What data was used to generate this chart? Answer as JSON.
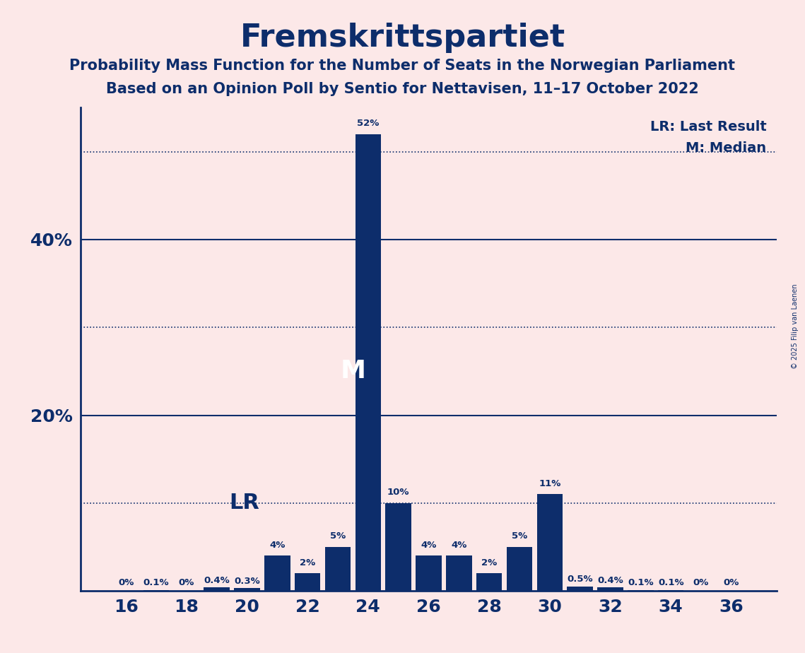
{
  "title": "Fremskrittspartiet",
  "subtitle1": "Probability Mass Function for the Number of Seats in the Norwegian Parliament",
  "subtitle2": "Based on an Opinion Poll by Sentio for Nettavisen, 11–17 October 2022",
  "copyright": "© 2025 Filip van Laenen",
  "background_color": "#fce8e8",
  "bar_color": "#0d2d6b",
  "text_color": "#0d2d6b",
  "seats": [
    16,
    17,
    18,
    19,
    20,
    21,
    22,
    23,
    24,
    25,
    26,
    27,
    28,
    29,
    30,
    31,
    32,
    33,
    34,
    35,
    36
  ],
  "probabilities": [
    0.0,
    0.1,
    0.0,
    0.4,
    0.3,
    4.0,
    2.0,
    5.0,
    52.0,
    10.0,
    4.0,
    4.0,
    2.0,
    5.0,
    11.0,
    0.5,
    0.4,
    0.1,
    0.1,
    0.0,
    0.0
  ],
  "labels": [
    "0%",
    "0.1%",
    "0%",
    "0.4%",
    "0.3%",
    "4%",
    "2%",
    "5%",
    "52%",
    "10%",
    "4%",
    "4%",
    "2%",
    "5%",
    "11%",
    "0.5%",
    "0.4%",
    "0.1%",
    "0.1%",
    "0%",
    "0%"
  ],
  "median_seat": 24,
  "last_result_seat": 21,
  "last_result_value": 10.0,
  "ylim": [
    0,
    55
  ],
  "solid_hline_values": [
    20.0,
    40.0
  ],
  "dotted_hline_values": [
    10.0,
    30.0,
    50.0
  ],
  "ytick_positions": [
    20,
    40
  ],
  "ytick_labels": [
    "20%",
    "40%"
  ],
  "xticks": [
    16,
    18,
    20,
    22,
    24,
    26,
    28,
    30,
    32,
    34,
    36
  ],
  "lr_label": "LR",
  "m_label": "M",
  "legend_lr": "LR: Last Result",
  "legend_m": "M: Median"
}
